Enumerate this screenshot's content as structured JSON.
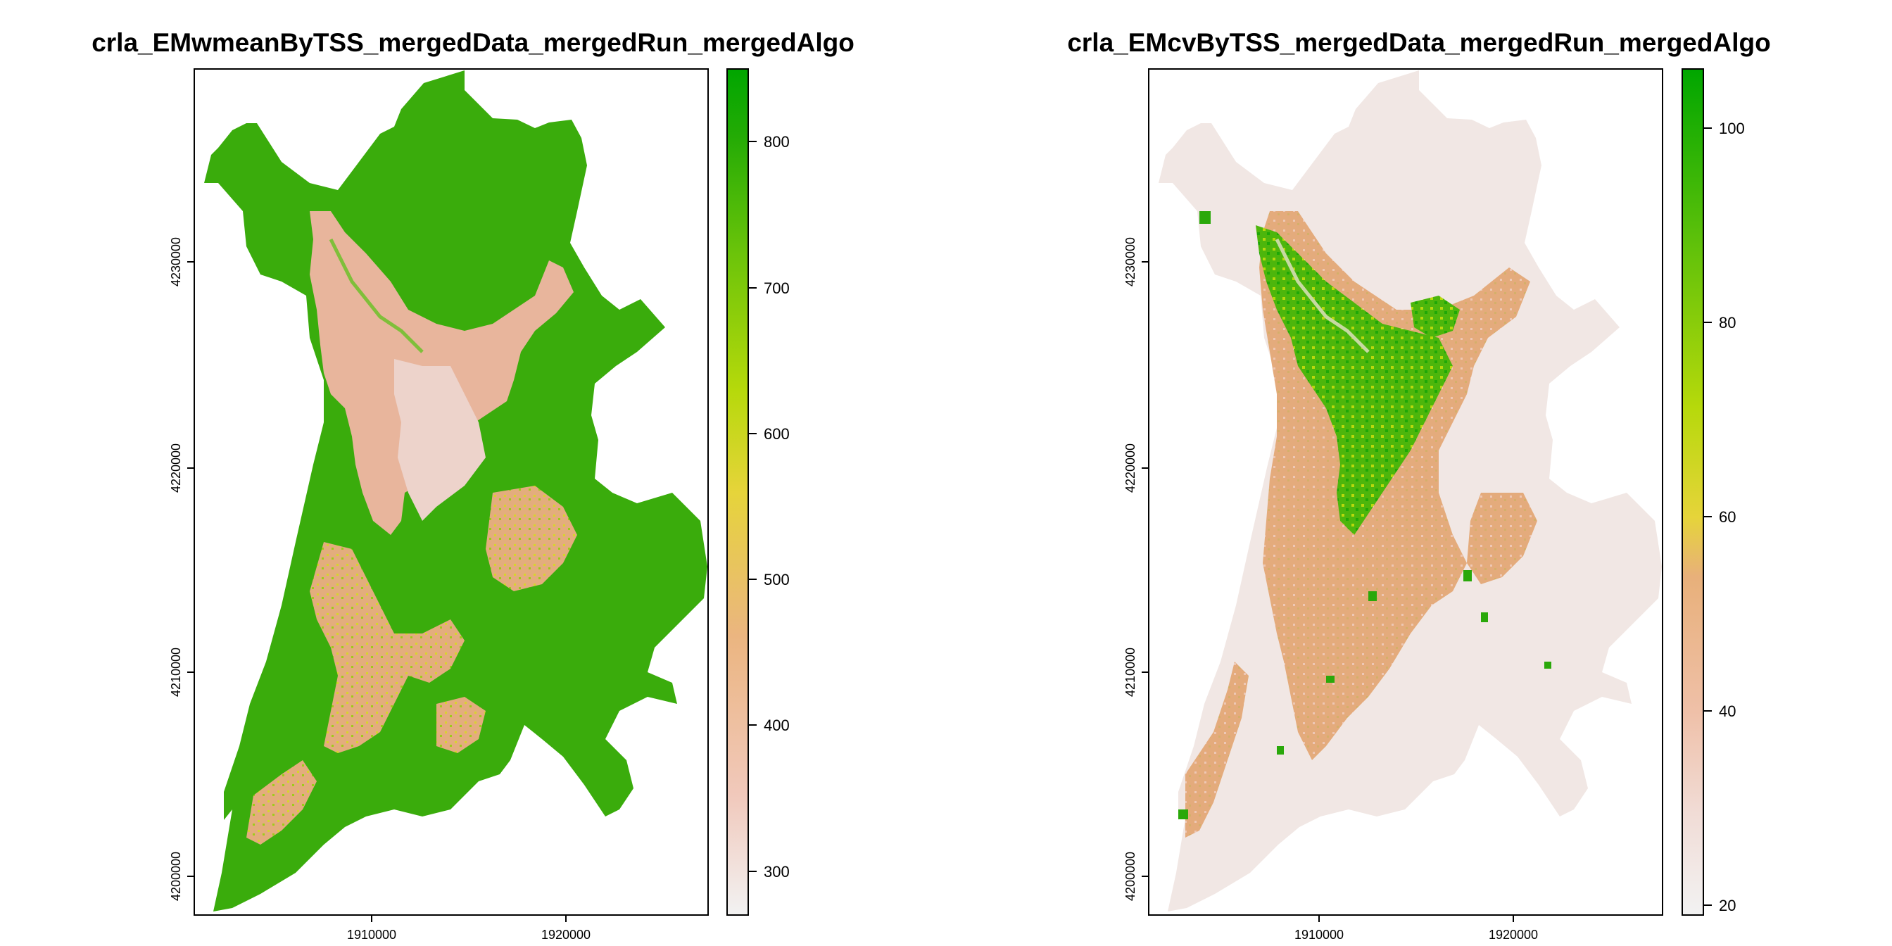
{
  "panels": [
    {
      "id": "left",
      "title": "crla_EMwmeanByTSS_mergedData_mergedRun_mergedAlgo",
      "x_ticks": [
        "1910000",
        "1920000"
      ],
      "y_ticks": [
        "4200000",
        "4210000",
        "4220000",
        "4230000"
      ],
      "legend": {
        "range": [
          270,
          850
        ],
        "ticks": [
          "300",
          "400",
          "500",
          "600",
          "700",
          "800"
        ],
        "tick_values": [
          300,
          400,
          500,
          600,
          700,
          800
        ]
      }
    },
    {
      "id": "right",
      "title": "crla_EMcvByTSS_mergedData_mergedRun_mergedAlgo",
      "x_ticks": [
        "1910000",
        "1920000"
      ],
      "y_ticks": [
        "4200000",
        "4210000",
        "4220000",
        "4230000"
      ],
      "legend": {
        "range": [
          19,
          106
        ],
        "ticks": [
          "20",
          "40",
          "60",
          "80",
          "100"
        ],
        "tick_values": [
          20,
          40,
          60,
          80,
          100
        ]
      }
    }
  ],
  "colors": {
    "ramp": [
      "#f2f2f2",
      "#f1c9bc",
      "#ebb580",
      "#e6d43a",
      "#b6d90b",
      "#6cc40a",
      "#24ab05",
      "#00a600"
    ],
    "green": "#3aac0c",
    "salmon": "#e8b59c",
    "pale": "#f1e7e4",
    "tan": "#e2a874",
    "yellow": "#d7d92a"
  }
}
